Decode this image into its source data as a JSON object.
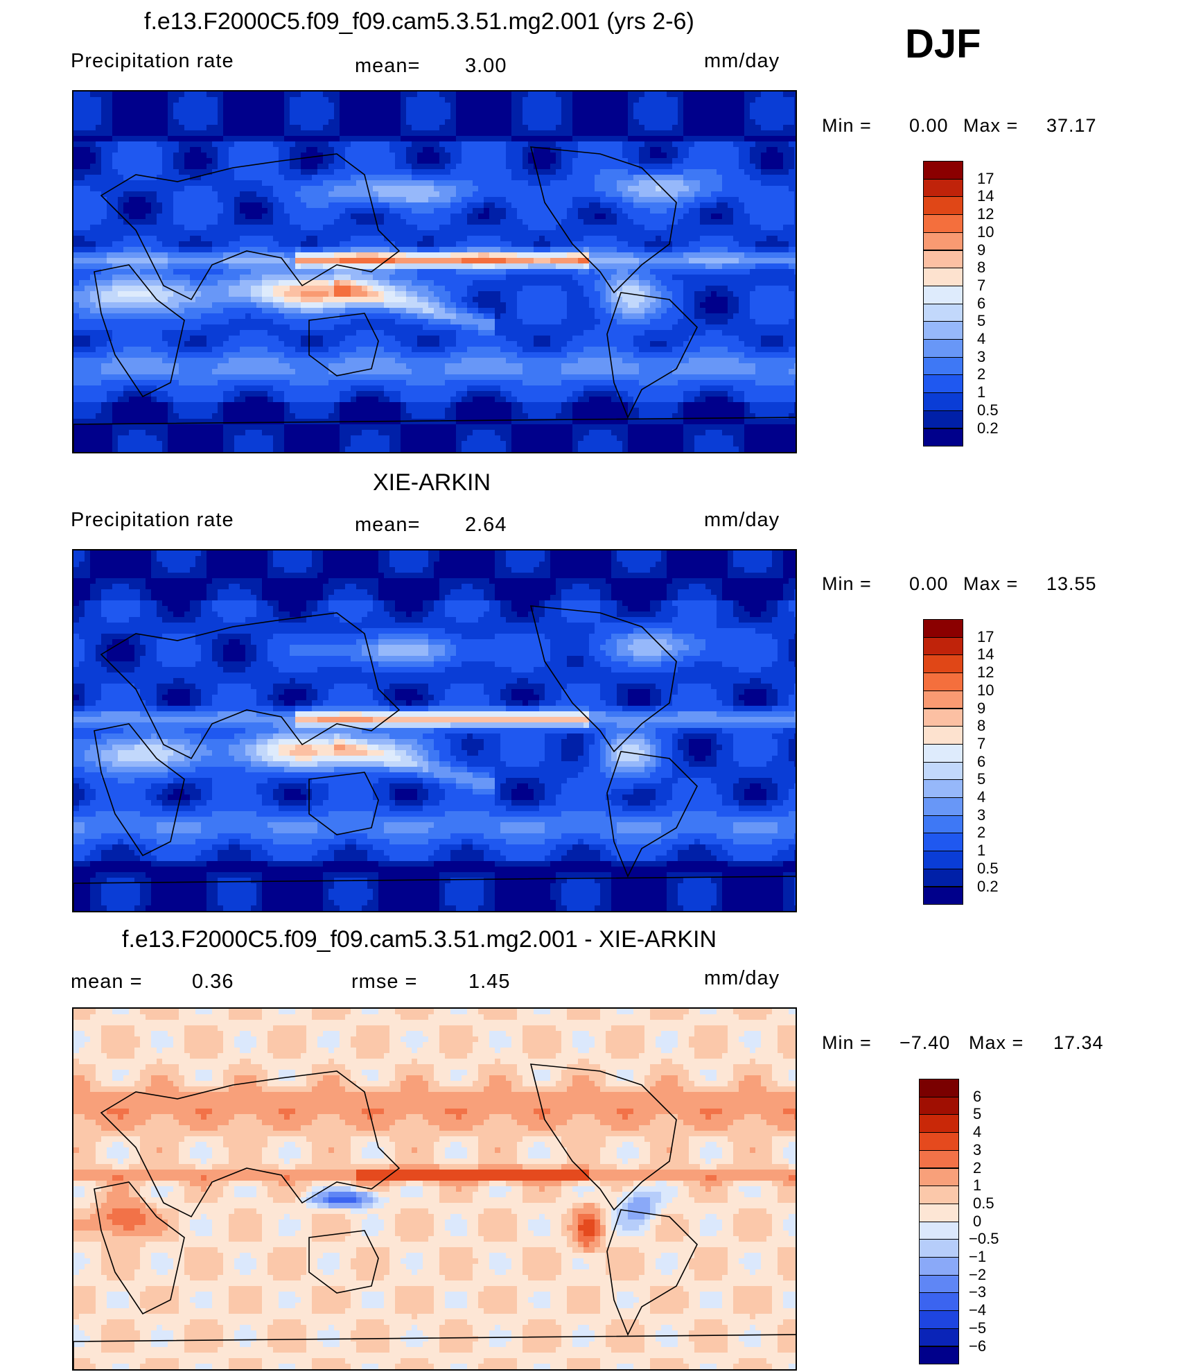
{
  "season": "DJF",
  "panels": [
    {
      "title": "f.e13.F2000C5.f09_f09.cam5.3.51.mg2.001 (yrs 2-6)",
      "left_label": "Precipitation  rate",
      "mid_label": "mean=",
      "mid_value": "3.00",
      "units": "mm/day",
      "min_label": "Min  =",
      "min_value": "0.00",
      "max_label": "Max  =",
      "max_value": "37.17",
      "palette": "precip",
      "colorbar_labels": [
        "17",
        "14",
        "12",
        "10",
        "9",
        "8",
        "7",
        "6",
        "5",
        "4",
        "3",
        "2",
        "1",
        "0.5",
        "0.2"
      ]
    },
    {
      "title": "XIE-ARKIN",
      "left_label": "Precipitation  rate",
      "mid_label": "mean=",
      "mid_value": "2.64",
      "units": "mm/day",
      "min_label": "Min  =",
      "min_value": "0.00",
      "max_label": "Max  =",
      "max_value": "13.55",
      "palette": "precip",
      "colorbar_labels": [
        "17",
        "14",
        "12",
        "10",
        "9",
        "8",
        "7",
        "6",
        "5",
        "4",
        "3",
        "2",
        "1",
        "0.5",
        "0.2"
      ]
    },
    {
      "title": "f.e13.F2000C5.f09_f09.cam5.3.51.mg2.001 - XIE-ARKIN",
      "left_label": "mean  =",
      "left_value": "0.36",
      "mid_label": "rmse  =",
      "mid_value": "1.45",
      "units": "mm/day",
      "min_label": "Min  =",
      "min_value": "−7.40",
      "max_label": "Max  =",
      "max_value": "17.34",
      "palette": "diff",
      "colorbar_labels": [
        "6",
        "5",
        "4",
        "3",
        "2",
        "1",
        "0.5",
        "0",
        "−0.5",
        "−1",
        "−2",
        "−3",
        "−4",
        "−5",
        "−6"
      ]
    }
  ],
  "palettes": {
    "precip": [
      "#00008b",
      "#0020a8",
      "#0a3dd6",
      "#1f58f0",
      "#3e78f5",
      "#6897f7",
      "#96b8fa",
      "#c2d8fb",
      "#deebfc",
      "#fde2cf",
      "#fcc0a3",
      "#f99a72",
      "#f46f3d",
      "#e04717",
      "#c0230a",
      "#8b0000"
    ],
    "diff": [
      "#00008b",
      "#0a24b8",
      "#1e45e0",
      "#3b64f0",
      "#5f86f5",
      "#8aa9f8",
      "#b6cdfa",
      "#dbe8fc",
      "#fde6d5",
      "#fbc8aa",
      "#f8a07a",
      "#f27248",
      "#e54a1e",
      "#c92808",
      "#a00f02",
      "#7a0000"
    ]
  },
  "chart_data": [
    {
      "type": "heatmap",
      "title": "f.e13.F2000C5.f09_f09.cam5.3.51.mg2.001 (yrs 2-6)",
      "subtitle": "DJF",
      "variable": "Precipitation  rate",
      "units": "mm/day",
      "mean": 3.0,
      "min": 0.0,
      "max": 37.17,
      "levels": [
        0.2,
        0.5,
        1,
        2,
        3,
        4,
        5,
        6,
        7,
        8,
        9,
        10,
        12,
        14,
        17
      ]
    },
    {
      "type": "heatmap",
      "title": "XIE-ARKIN",
      "variable": "Precipitation  rate",
      "units": "mm/day",
      "mean": 2.64,
      "min": 0.0,
      "max": 13.55,
      "levels": [
        0.2,
        0.5,
        1,
        2,
        3,
        4,
        5,
        6,
        7,
        8,
        9,
        10,
        12,
        14,
        17
      ]
    },
    {
      "type": "heatmap",
      "title": "f.e13.F2000C5.f09_f09.cam5.3.51.mg2.001 - XIE-ARKIN",
      "units": "mm/day",
      "mean": 0.36,
      "rmse": 1.45,
      "min": -7.4,
      "max": 17.34,
      "levels": [
        -6,
        -5,
        -4,
        -3,
        -2,
        -1,
        -0.5,
        0,
        0.5,
        1,
        2,
        3,
        4,
        5,
        6
      ]
    }
  ]
}
